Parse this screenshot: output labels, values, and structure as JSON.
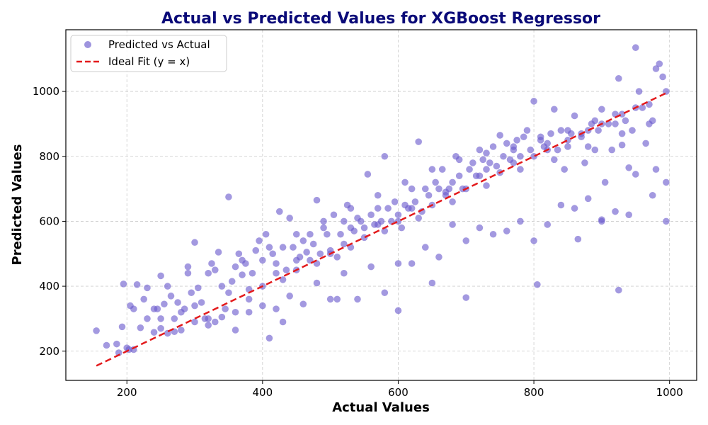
{
  "colors": {
    "title": "#0a0a78",
    "points": "#6a5acd",
    "ideal_line": "#e31a1c",
    "grid": "#cccccc",
    "axes": "#000000"
  },
  "chart_data": {
    "type": "scatter",
    "title": "Actual vs Predicted Values for XGBoost Regressor",
    "xlabel": "Actual Values",
    "ylabel": "Predicted Values",
    "xlim": [
      110,
      1040
    ],
    "ylim": [
      110,
      1190
    ],
    "xticks": [
      200,
      400,
      600,
      800,
      1000
    ],
    "yticks": [
      200,
      400,
      600,
      800,
      1000
    ],
    "xtick_labels": [
      "200",
      "400",
      "600",
      "800",
      "1000"
    ],
    "ytick_labels": [
      "200",
      "400",
      "600",
      "800",
      "1000"
    ],
    "grid": true,
    "legend_position": "top-left",
    "legend": [
      "Predicted vs Actual",
      "Ideal Fit (y = x)"
    ],
    "ideal_fit": {
      "x": [
        155,
        995
      ],
      "y": [
        155,
        995
      ]
    },
    "series": [
      {
        "name": "Predicted vs Actual",
        "points": [
          [
            155,
            263
          ],
          [
            170,
            218
          ],
          [
            185,
            222
          ],
          [
            188,
            195
          ],
          [
            193,
            275
          ],
          [
            195,
            407
          ],
          [
            200,
            210
          ],
          [
            203,
            205
          ],
          [
            205,
            340
          ],
          [
            210,
            205
          ],
          [
            215,
            405
          ],
          [
            220,
            272
          ],
          [
            225,
            360
          ],
          [
            230,
            395
          ],
          [
            240,
            258
          ],
          [
            245,
            330
          ],
          [
            250,
            432
          ],
          [
            255,
            345
          ],
          [
            260,
            255
          ],
          [
            265,
            370
          ],
          [
            270,
            300
          ],
          [
            275,
            350
          ],
          [
            280,
            265
          ],
          [
            285,
            330
          ],
          [
            290,
            460
          ],
          [
            295,
            380
          ],
          [
            300,
            535
          ],
          [
            305,
            395
          ],
          [
            310,
            350
          ],
          [
            315,
            300
          ],
          [
            320,
            440
          ],
          [
            325,
            470
          ],
          [
            330,
            290
          ],
          [
            335,
            505
          ],
          [
            340,
            400
          ],
          [
            345,
            330
          ],
          [
            350,
            675
          ],
          [
            355,
            415
          ],
          [
            360,
            460
          ],
          [
            365,
            500
          ],
          [
            370,
            435
          ],
          [
            375,
            470
          ],
          [
            380,
            360
          ],
          [
            385,
            440
          ],
          [
            390,
            510
          ],
          [
            395,
            540
          ],
          [
            400,
            480
          ],
          [
            405,
            560
          ],
          [
            410,
            240
          ],
          [
            415,
            500
          ],
          [
            420,
            470
          ],
          [
            425,
            630
          ],
          [
            430,
            520
          ],
          [
            435,
            450
          ],
          [
            440,
            610
          ],
          [
            445,
            520
          ],
          [
            450,
            480
          ],
          [
            455,
            490
          ],
          [
            460,
            540
          ],
          [
            465,
            505
          ],
          [
            470,
            560
          ],
          [
            475,
            530
          ],
          [
            480,
            665
          ],
          [
            485,
            500
          ],
          [
            490,
            580
          ],
          [
            495,
            560
          ],
          [
            500,
            510
          ],
          [
            505,
            620
          ],
          [
            510,
            490
          ],
          [
            515,
            560
          ],
          [
            520,
            600
          ],
          [
            525,
            650
          ],
          [
            530,
            580
          ],
          [
            535,
            570
          ],
          [
            540,
            610
          ],
          [
            545,
            600
          ],
          [
            550,
            580
          ],
          [
            555,
            745
          ],
          [
            560,
            620
          ],
          [
            565,
            590
          ],
          [
            570,
            640
          ],
          [
            575,
            600
          ],
          [
            580,
            800
          ],
          [
            585,
            640
          ],
          [
            590,
            600
          ],
          [
            595,
            660
          ],
          [
            600,
            620
          ],
          [
            605,
            580
          ],
          [
            610,
            650
          ],
          [
            615,
            640
          ],
          [
            620,
            700
          ],
          [
            625,
            660
          ],
          [
            630,
            845
          ],
          [
            635,
            630
          ],
          [
            640,
            700
          ],
          [
            645,
            680
          ],
          [
            650,
            410
          ],
          [
            655,
            720
          ],
          [
            660,
            700
          ],
          [
            665,
            760
          ],
          [
            670,
            680
          ],
          [
            675,
            700
          ],
          [
            680,
            720
          ],
          [
            685,
            800
          ],
          [
            690,
            740
          ],
          [
            695,
            700
          ],
          [
            700,
            365
          ],
          [
            705,
            760
          ],
          [
            710,
            780
          ],
          [
            715,
            740
          ],
          [
            720,
            820
          ],
          [
            725,
            790
          ],
          [
            730,
            760
          ],
          [
            735,
            780
          ],
          [
            740,
            830
          ],
          [
            745,
            770
          ],
          [
            750,
            865
          ],
          [
            755,
            800
          ],
          [
            760,
            840
          ],
          [
            765,
            790
          ],
          [
            770,
            820
          ],
          [
            775,
            850
          ],
          [
            780,
            800
          ],
          [
            785,
            860
          ],
          [
            790,
            880
          ],
          [
            795,
            820
          ],
          [
            800,
            970
          ],
          [
            805,
            405
          ],
          [
            810,
            860
          ],
          [
            815,
            830
          ],
          [
            820,
            840
          ],
          [
            825,
            870
          ],
          [
            830,
            945
          ],
          [
            835,
            820
          ],
          [
            840,
            880
          ],
          [
            845,
            760
          ],
          [
            850,
            830
          ],
          [
            855,
            870
          ],
          [
            860,
            925
          ],
          [
            865,
            545
          ],
          [
            870,
            870
          ],
          [
            875,
            780
          ],
          [
            880,
            880
          ],
          [
            885,
            900
          ],
          [
            890,
            820
          ],
          [
            895,
            880
          ],
          [
            900,
            945
          ],
          [
            905,
            720
          ],
          [
            910,
            900
          ],
          [
            915,
            820
          ],
          [
            920,
            930
          ],
          [
            925,
            1040
          ],
          [
            930,
            835
          ],
          [
            935,
            910
          ],
          [
            940,
            765
          ],
          [
            945,
            880
          ],
          [
            950,
            1135
          ],
          [
            955,
            1000
          ],
          [
            960,
            950
          ],
          [
            965,
            840
          ],
          [
            970,
            900
          ],
          [
            975,
            680
          ],
          [
            980,
            1070
          ],
          [
            985,
            1085
          ],
          [
            990,
            1045
          ],
          [
            995,
            1000
          ],
          [
            925,
            388
          ],
          [
            900,
            605
          ],
          [
            600,
            325
          ],
          [
            510,
            360
          ],
          [
            430,
            290
          ],
          [
            360,
            265
          ],
          [
            320,
            280
          ],
          [
            270,
            260
          ],
          [
            250,
            270
          ],
          [
            230,
            300
          ],
          [
            300,
            290
          ],
          [
            340,
            305
          ],
          [
            380,
            320
          ],
          [
            420,
            330
          ],
          [
            460,
            345
          ],
          [
            500,
            360
          ],
          [
            540,
            360
          ],
          [
            580,
            380
          ],
          [
            620,
            470
          ],
          [
            660,
            490
          ],
          [
            700,
            540
          ],
          [
            740,
            560
          ],
          [
            780,
            600
          ],
          [
            820,
            590
          ],
          [
            860,
            640
          ],
          [
            900,
            600
          ],
          [
            940,
            620
          ],
          [
            980,
            760
          ],
          [
            995,
            720
          ],
          [
            995,
            600
          ],
          [
            950,
            745
          ],
          [
            920,
            630
          ],
          [
            880,
            670
          ],
          [
            840,
            650
          ],
          [
            800,
            540
          ],
          [
            760,
            570
          ],
          [
            720,
            580
          ],
          [
            680,
            590
          ],
          [
            640,
            520
          ],
          [
            600,
            470
          ],
          [
            560,
            460
          ],
          [
            520,
            440
          ],
          [
            480,
            410
          ],
          [
            440,
            370
          ],
          [
            400,
            340
          ],
          [
            360,
            320
          ],
          [
            320,
            300
          ],
          [
            280,
            320
          ],
          [
            240,
            330
          ],
          [
            210,
            330
          ],
          [
            260,
            400
          ],
          [
            290,
            440
          ],
          [
            330,
            450
          ],
          [
            370,
            480
          ],
          [
            410,
            520
          ],
          [
            450,
            560
          ],
          [
            490,
            600
          ],
          [
            530,
            640
          ],
          [
            570,
            680
          ],
          [
            610,
            720
          ],
          [
            650,
            760
          ],
          [
            690,
            790
          ],
          [
            730,
            810
          ],
          [
            770,
            830
          ],
          [
            810,
            850
          ],
          [
            850,
            880
          ],
          [
            890,
            910
          ],
          [
            930,
            930
          ],
          [
            970,
            960
          ],
          [
            400,
            400
          ],
          [
            450,
            450
          ],
          [
            500,
            500
          ],
          [
            550,
            550
          ],
          [
            600,
            600
          ],
          [
            650,
            650
          ],
          [
            700,
            700
          ],
          [
            750,
            750
          ],
          [
            800,
            800
          ],
          [
            850,
            850
          ],
          [
            900,
            900
          ],
          [
            950,
            950
          ],
          [
            420,
            440
          ],
          [
            470,
            480
          ],
          [
            520,
            530
          ],
          [
            570,
            590
          ],
          [
            620,
            640
          ],
          [
            670,
            690
          ],
          [
            720,
            740
          ],
          [
            770,
            780
          ],
          [
            820,
            820
          ],
          [
            870,
            860
          ],
          [
            920,
            900
          ],
          [
            350,
            380
          ],
          [
            300,
            340
          ],
          [
            250,
            300
          ],
          [
            380,
            390
          ],
          [
            430,
            420
          ],
          [
            480,
            470
          ],
          [
            530,
            520
          ],
          [
            580,
            570
          ],
          [
            630,
            610
          ],
          [
            680,
            660
          ],
          [
            730,
            710
          ],
          [
            780,
            760
          ],
          [
            830,
            790
          ],
          [
            880,
            830
          ],
          [
            930,
            870
          ],
          [
            975,
            910
          ]
        ]
      }
    ]
  }
}
